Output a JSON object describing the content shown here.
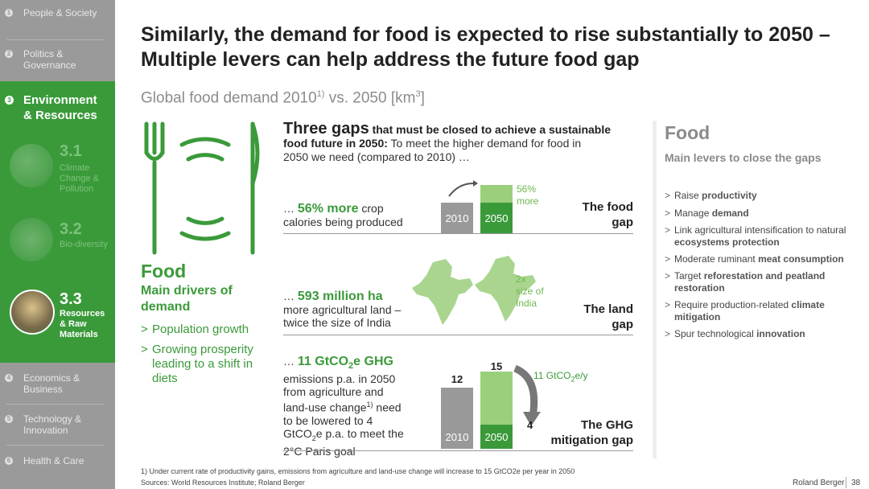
{
  "sidebar": {
    "items": [
      {
        "num": "1",
        "label": "People & Society"
      },
      {
        "num": "2",
        "label": "Politics & Governance"
      },
      {
        "num": "4",
        "label": "Economics & Business"
      },
      {
        "num": "5",
        "label": "Technology & Innovation"
      },
      {
        "num": "6",
        "label": "Health & Care"
      }
    ],
    "active": {
      "num": "3",
      "label": "Environment & Resources"
    },
    "subs": [
      {
        "num": "3.1",
        "label": "Climate Change & Pollution"
      },
      {
        "num": "3.2",
        "label": "Bio-diversity"
      },
      {
        "num": "3.3",
        "label": "Resources & Raw Materials"
      }
    ]
  },
  "title": "Similarly, the demand for food is expected to rise substantially to 2050 – Multiple levers can help address the future food gap",
  "subtitle_pre": "Global food demand 2010",
  "subtitle_sup": "1)",
  "subtitle_post": " vs. 2050 [km",
  "subtitle_sup2": "3",
  "subtitle_end": "]",
  "drivers": {
    "title": "Food",
    "subtitle": "Main drivers of demand",
    "items": [
      "Population growth",
      "Growing prosperity leading to a shift in diets"
    ]
  },
  "gaps": {
    "heading_bold": "Three gaps",
    "heading_rest": " that must be closed to achieve a sustainable",
    "heading_line2_bold": "food future in 2050:",
    "heading_line2_rest": " To meet the higher demand for food in",
    "heading_line3": "2050 we need (compared to 2010) …",
    "food": {
      "prefix": "… ",
      "big": "56% more",
      "rest": " crop",
      "line2": "calories being produced",
      "label_2010": "2010",
      "label_2050": "2050",
      "increase": "56%",
      "increase2": "more",
      "title1": "The food",
      "title2": "gap"
    },
    "land": {
      "prefix": "… ",
      "big": "593 million ha",
      "line2": "more agricultural land –",
      "line3": "twice the size of India",
      "note1": "2x",
      "note2": "size of",
      "note3": "India",
      "title1": "The land",
      "title2": "gap"
    },
    "ghg": {
      "prefix": "… ",
      "big": "11 GtCO",
      "bigsub": "2",
      "bigend": "e GHG",
      "l2": "emissions p.a. in 2050",
      "l3": "from agriculture and",
      "l4": "land-use change",
      "l4sup": "1)",
      "l4end": " need",
      "l5": "to be lowered to 4",
      "l6": "GtCO",
      "l6sub": "2",
      "l6end": "e p.a. to meet the",
      "l7": "2°C Paris goal",
      "v2010": "12",
      "v2050": "15",
      "target": "4",
      "arrow_label": "11 GtCO",
      "arrow_sub": "2",
      "arrow_end": "e/y",
      "label_2010": "2010",
      "label_2050": "2050",
      "title1": "The GHG",
      "title2": "mitigation gap"
    }
  },
  "levers": {
    "title": "Food",
    "subtitle": "Main levers to close the gaps",
    "items": [
      {
        "pre": "Raise ",
        "bold": "productivity",
        "post": ""
      },
      {
        "pre": "Manage ",
        "bold": "demand",
        "post": ""
      },
      {
        "pre": "Link agricultural intensification to natural ",
        "bold": "ecosystems protection",
        "post": ""
      },
      {
        "pre": "Moderate ruminant ",
        "bold": "meat consumption",
        "post": ""
      },
      {
        "pre": "Target ",
        "bold": "reforestation",
        "post": " and peatland restoration",
        "bold2": true
      },
      {
        "pre": "Require production-related ",
        "bold": "climate mitigation",
        "post": ""
      },
      {
        "pre": "Spur technological ",
        "bold": "innovation",
        "post": ""
      }
    ]
  },
  "chart_data": [
    {
      "type": "bar",
      "title": "The food gap",
      "categories": [
        "2010",
        "2050"
      ],
      "values": [
        100,
        156
      ],
      "annotation": "56% more"
    },
    {
      "type": "bar",
      "title": "The GHG mitigation gap",
      "categories": [
        "2010",
        "2050"
      ],
      "values": [
        12,
        15
      ],
      "target": 4,
      "annotation": "11 GtCO2e/y"
    }
  ],
  "footer": {
    "note": "1) Under current rate of productivity gains, emissions from agriculture and land-use change will increase to 15 GtCO2e per year in 2050",
    "sources": "Sources: World Resources Institute; Roland Berger",
    "brand": "Roland Berger",
    "page": "38"
  },
  "colors": {
    "green": "#3a9a3a",
    "light_green": "#97c97a",
    "grey": "#9a9a9a"
  }
}
